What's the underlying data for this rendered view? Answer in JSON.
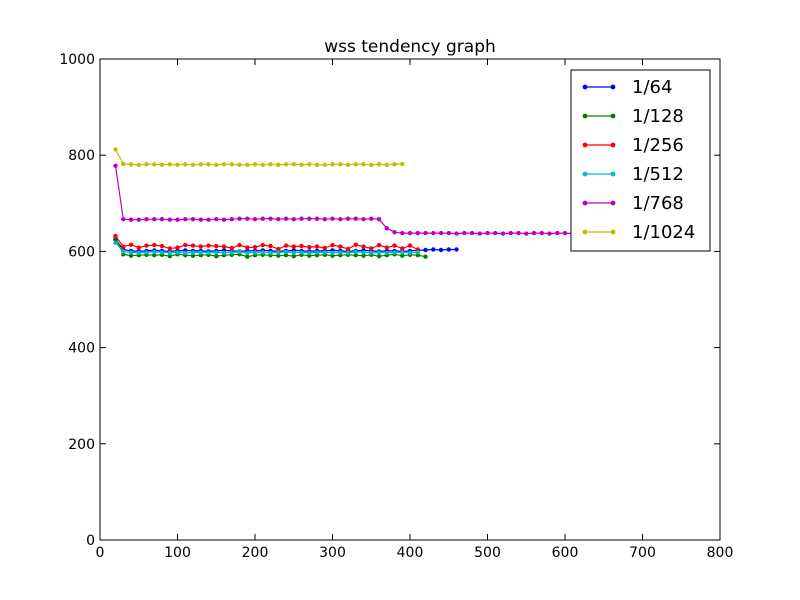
{
  "chart_data": {
    "type": "line",
    "title": "wss tendency graph",
    "xlabel": "",
    "ylabel": "",
    "xlim": [
      0,
      800
    ],
    "ylim": [
      0,
      1000
    ],
    "xticks": [
      0,
      100,
      200,
      300,
      400,
      500,
      600,
      700,
      800
    ],
    "yticks": [
      0,
      200,
      400,
      600,
      800,
      1000
    ],
    "grid": false,
    "legend_position": "top-right",
    "series": [
      {
        "name": "1/64",
        "color": "#0000ff",
        "x": [
          20,
          30,
          40,
          50,
          60,
          70,
          80,
          90,
          100,
          110,
          120,
          130,
          140,
          150,
          160,
          170,
          180,
          190,
          200,
          210,
          220,
          230,
          240,
          250,
          260,
          270,
          280,
          290,
          300,
          310,
          320,
          330,
          340,
          350,
          360,
          370,
          380,
          390,
          400,
          410,
          420,
          430,
          440,
          450,
          460
        ],
        "y": [
          625,
          604,
          601,
          600,
          601,
          602,
          601,
          600,
          601,
          602,
          601,
          601,
          600,
          601,
          602,
          601,
          600,
          601,
          601,
          602,
          601,
          600,
          601,
          602,
          601,
          600,
          601,
          601,
          602,
          601,
          600,
          601,
          602,
          601,
          600,
          601,
          601,
          600,
          601,
          602,
          603,
          604,
          603,
          604,
          604
        ]
      },
      {
        "name": "1/128",
        "color": "#008000",
        "x": [
          20,
          30,
          40,
          50,
          60,
          70,
          80,
          90,
          100,
          110,
          120,
          130,
          140,
          150,
          160,
          170,
          180,
          190,
          200,
          210,
          220,
          230,
          240,
          250,
          260,
          270,
          280,
          290,
          300,
          310,
          320,
          330,
          340,
          350,
          360,
          370,
          380,
          390,
          400,
          410,
          420
        ],
        "y": [
          630,
          594,
          591,
          592,
          593,
          592,
          593,
          590,
          594,
          592,
          591,
          592,
          593,
          590,
          592,
          593,
          594,
          589,
          592,
          593,
          592,
          591,
          592,
          590,
          593,
          591,
          592,
          593,
          591,
          592,
          593,
          592,
          591,
          593,
          590,
          592,
          594,
          591,
          593,
          592,
          589
        ]
      },
      {
        "name": "1/256",
        "color": "#ff0000",
        "x": [
          20,
          30,
          40,
          50,
          60,
          70,
          80,
          90,
          100,
          110,
          120,
          130,
          140,
          150,
          160,
          170,
          180,
          190,
          200,
          210,
          220,
          230,
          240,
          250,
          260,
          270,
          280,
          290,
          300,
          310,
          320,
          330,
          340,
          350,
          360,
          370,
          380,
          390,
          400,
          410
        ],
        "y": [
          632,
          610,
          614,
          608,
          612,
          613,
          611,
          606,
          608,
          613,
          612,
          610,
          612,
          611,
          610,
          607,
          613,
          608,
          609,
          613,
          611,
          605,
          612,
          610,
          611,
          609,
          610,
          607,
          613,
          610,
          605,
          614,
          610,
          606,
          613,
          608,
          612,
          606,
          612,
          604
        ]
      },
      {
        "name": "1/512",
        "color": "#00bfbf",
        "x": [
          20,
          30,
          40,
          50,
          60,
          70,
          80,
          90,
          100,
          110,
          120,
          130,
          140,
          150,
          160,
          170,
          180,
          190,
          200,
          210,
          220,
          230,
          240,
          250,
          260,
          270,
          280,
          290,
          300,
          310,
          320,
          330,
          340,
          350,
          360,
          370,
          380,
          390,
          400,
          410
        ],
        "y": [
          618,
          600,
          598,
          597,
          598,
          599,
          598,
          597,
          598,
          597,
          598,
          598,
          597,
          598,
          597,
          598,
          599,
          597,
          598,
          598,
          597,
          598,
          599,
          597,
          598,
          597,
          598,
          598,
          597,
          598,
          597,
          599,
          598,
          597,
          598,
          597,
          598,
          598,
          597,
          598
        ]
      },
      {
        "name": "1/768",
        "color": "#bf00bf",
        "x": [
          20,
          30,
          40,
          50,
          60,
          70,
          80,
          90,
          100,
          110,
          120,
          130,
          140,
          150,
          160,
          170,
          180,
          190,
          200,
          210,
          220,
          230,
          240,
          250,
          260,
          270,
          280,
          290,
          300,
          310,
          320,
          330,
          340,
          350,
          360,
          370,
          380,
          390,
          400,
          410,
          420,
          430,
          440,
          450,
          460,
          470,
          480,
          490,
          500,
          510,
          520,
          530,
          540,
          550,
          560,
          570,
          580,
          590,
          600,
          610,
          620,
          630
        ],
        "y": [
          778,
          667,
          666,
          666,
          667,
          667,
          667,
          666,
          666,
          667,
          667,
          666,
          666,
          667,
          666,
          667,
          668,
          668,
          667,
          668,
          668,
          667,
          668,
          667,
          668,
          668,
          668,
          667,
          668,
          667,
          668,
          668,
          667,
          668,
          667,
          648,
          640,
          638,
          638,
          638,
          638,
          638,
          638,
          638,
          637,
          638,
          638,
          637,
          638,
          638,
          637,
          638,
          638,
          637,
          638,
          638,
          637,
          638,
          638,
          637,
          638,
          638
        ]
      },
      {
        "name": "1/1024",
        "color": "#bfbf00",
        "x": [
          20,
          30,
          40,
          50,
          60,
          70,
          80,
          90,
          100,
          110,
          120,
          130,
          140,
          150,
          160,
          170,
          180,
          190,
          200,
          210,
          220,
          230,
          240,
          250,
          260,
          270,
          280,
          290,
          300,
          310,
          320,
          330,
          340,
          350,
          360,
          370,
          380,
          390
        ],
        "y": [
          812,
          782,
          781,
          780,
          781,
          781,
          780,
          781,
          780,
          781,
          780,
          781,
          781,
          780,
          781,
          781,
          780,
          780,
          781,
          780,
          781,
          780,
          781,
          781,
          780,
          781,
          780,
          780,
          781,
          781,
          780,
          781,
          781,
          780,
          781,
          780,
          781,
          782
        ]
      }
    ]
  }
}
